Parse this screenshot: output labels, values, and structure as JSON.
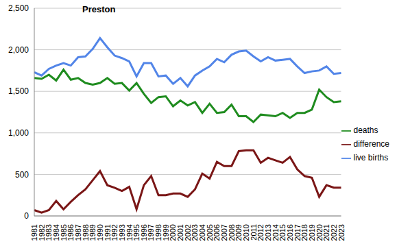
{
  "chart_data": {
    "type": "line",
    "title": "Preston",
    "categories": [
      "1981",
      "1982",
      "1983",
      "1984",
      "1985",
      "1986",
      "1987",
      "1988",
      "1989",
      "1990",
      "1991",
      "1992",
      "1993",
      "1994",
      "1995",
      "1996",
      "1997",
      "1998",
      "1999",
      "2000",
      "2001",
      "2002",
      "2003",
      "2004",
      "2005",
      "2006",
      "2007",
      "2008",
      "2009",
      "2010",
      "2011",
      "2012",
      "2013",
      "2014",
      "2015",
      "2016",
      "2017",
      "2018",
      "2019",
      "2020",
      "2021",
      "2022",
      "2023"
    ],
    "series": [
      {
        "name": "live births",
        "color": "#5285e8",
        "values": [
          1730,
          1690,
          1770,
          1810,
          1840,
          1810,
          1910,
          1920,
          2010,
          2140,
          2030,
          1930,
          1900,
          1860,
          1680,
          1840,
          1840,
          1680,
          1690,
          1590,
          1660,
          1560,
          1690,
          1750,
          1800,
          1890,
          1850,
          1940,
          1980,
          1990,
          1920,
          1860,
          1910,
          1870,
          1880,
          1890,
          1800,
          1720,
          1740,
          1750,
          1800,
          1710,
          1720
        ]
      },
      {
        "name": "deaths",
        "color": "#1f8c1f",
        "values": [
          1660,
          1650,
          1700,
          1630,
          1760,
          1640,
          1660,
          1600,
          1580,
          1600,
          1660,
          1590,
          1600,
          1510,
          1600,
          1470,
          1360,
          1430,
          1440,
          1320,
          1390,
          1330,
          1370,
          1240,
          1350,
          1240,
          1250,
          1340,
          1200,
          1200,
          1130,
          1220,
          1210,
          1200,
          1240,
          1180,
          1240,
          1240,
          1280,
          1520,
          1430,
          1370,
          1380
        ]
      },
      {
        "name": "difference",
        "color": "#7a1616",
        "values": [
          70,
          40,
          70,
          180,
          80,
          170,
          250,
          320,
          430,
          540,
          370,
          340,
          300,
          350,
          80,
          370,
          480,
          250,
          250,
          270,
          270,
          230,
          320,
          510,
          450,
          650,
          600,
          600,
          780,
          790,
          790,
          640,
          700,
          670,
          640,
          710,
          560,
          480,
          460,
          230,
          370,
          340,
          340
        ]
      }
    ],
    "ylim": [
      0,
      2500
    ],
    "yticks": [
      0,
      500,
      {
        "value": 1000,
        "label": "1,000"
      },
      {
        "value": 1500,
        "label": "1,500"
      },
      {
        "value": 2000,
        "label": "2,000"
      },
      {
        "value": 2500,
        "label": "2,500"
      }
    ],
    "grid": true,
    "legend": "right"
  }
}
